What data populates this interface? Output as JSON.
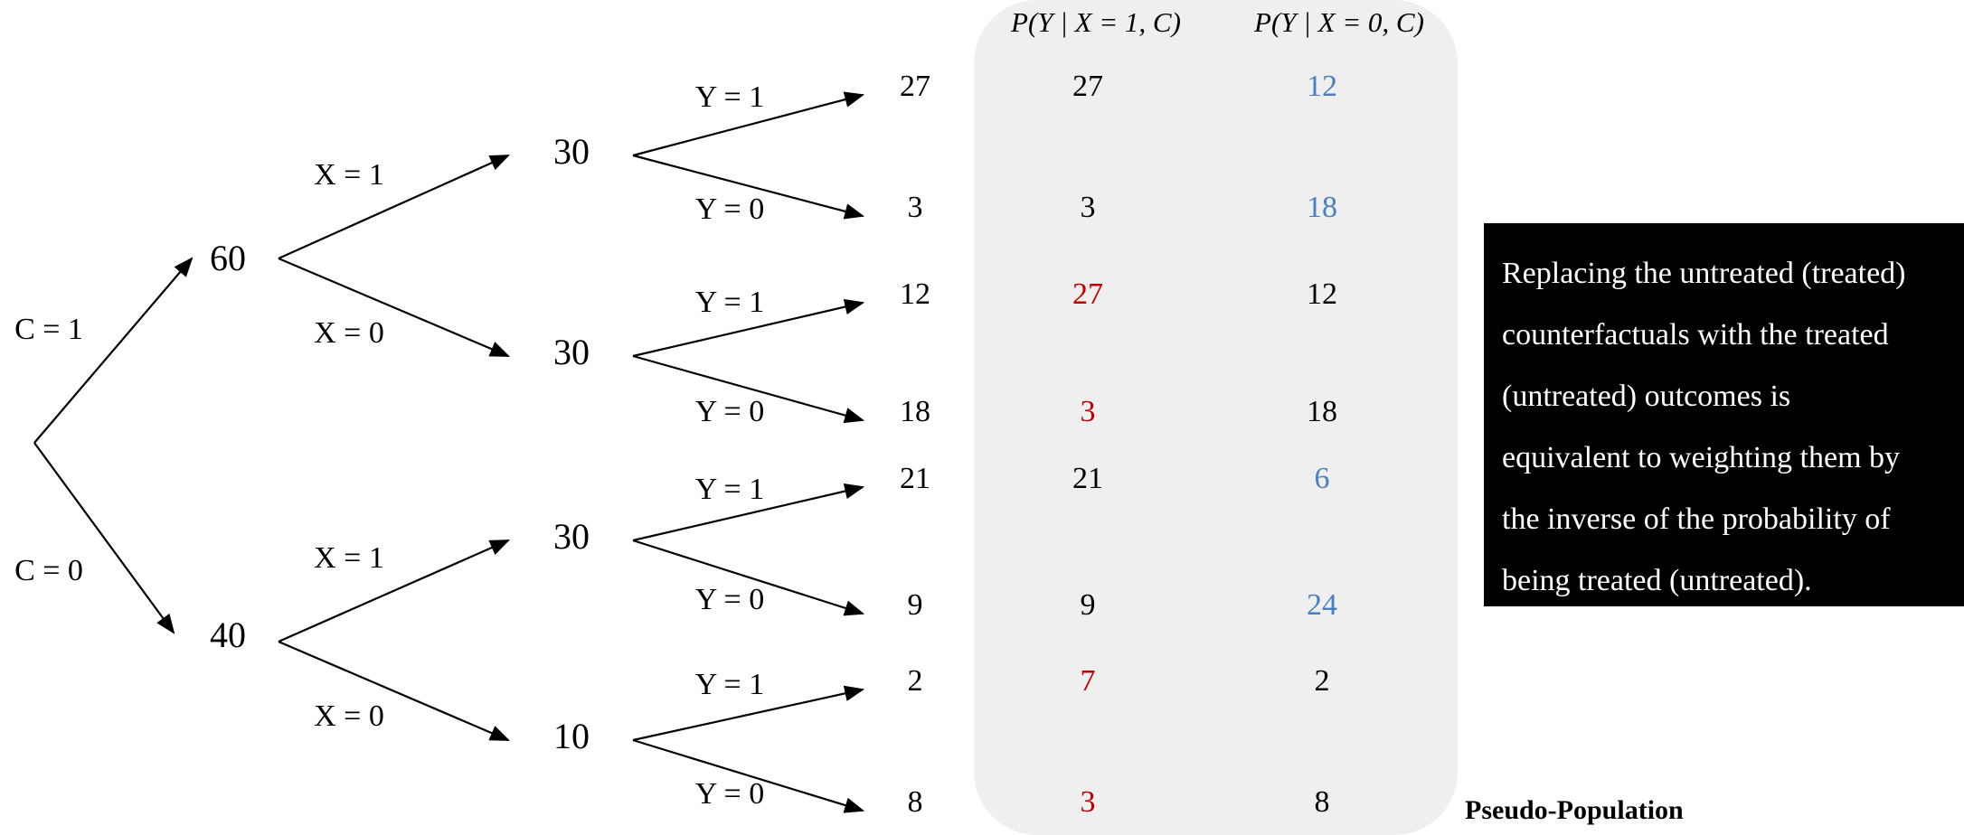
{
  "colors": {
    "red": "#c00000",
    "blue": "#4a7fc1",
    "black": "#000000",
    "panel": "#efefef"
  },
  "tree": {
    "c_labels": [
      "C = 1",
      "C = 0"
    ],
    "c_counts": [
      "60",
      "40"
    ],
    "x_labels": [
      "X = 1",
      "X = 0",
      "X = 1",
      "X = 0"
    ],
    "x_counts": [
      "30",
      "30",
      "30",
      "10"
    ],
    "y_labels": [
      "Y = 1",
      "Y = 0",
      "Y = 1",
      "Y = 0",
      "Y = 1",
      "Y = 0",
      "Y = 1",
      "Y = 0"
    ],
    "leaf_counts": [
      "27",
      "3",
      "12",
      "18",
      "21",
      "9",
      "2",
      "8"
    ]
  },
  "table": {
    "headers": [
      "P(Y | X = 1, C)",
      "P(Y | X = 0, C)"
    ],
    "col1": [
      {
        "v": "27",
        "c": "black"
      },
      {
        "v": "3",
        "c": "black"
      },
      {
        "v": "27",
        "c": "red"
      },
      {
        "v": "3",
        "c": "red"
      },
      {
        "v": "21",
        "c": "black"
      },
      {
        "v": "9",
        "c": "black"
      },
      {
        "v": "7",
        "c": "red"
      },
      {
        "v": "3",
        "c": "red"
      }
    ],
    "col2": [
      {
        "v": "12",
        "c": "blue"
      },
      {
        "v": "18",
        "c": "blue"
      },
      {
        "v": "12",
        "c": "black"
      },
      {
        "v": "18",
        "c": "black"
      },
      {
        "v": "6",
        "c": "blue"
      },
      {
        "v": "24",
        "c": "blue"
      },
      {
        "v": "2",
        "c": "black"
      },
      {
        "v": "8",
        "c": "black"
      }
    ]
  },
  "note": {
    "lines": [
      "Replacing the untreated (treated)",
      "counterfactuals with the treated",
      "(untreated) outcomes is",
      "equivalent to weighting them by",
      "the inverse of the probability of",
      "being treated (untreated)."
    ]
  },
  "caption": "Pseudo-Population"
}
